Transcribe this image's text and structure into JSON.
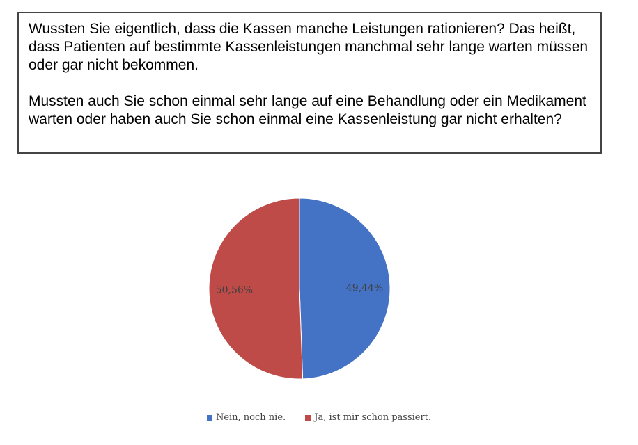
{
  "question": {
    "paragraph1": "Wussten Sie eigentlich, dass die Kassen manche Leistungen rationieren? Das heißt, dass Patienten auf bestimmte Kassenleistungen manchmal sehr lange warten müssen oder gar nicht bekommen.",
    "paragraph2": "Mussten auch Sie schon einmal sehr lange auf eine Behandlung oder ein Medikament warten oder haben auch Sie schon einmal eine Kassenleistung gar nicht erhalten?"
  },
  "chart_data": {
    "type": "pie",
    "title": "",
    "categories": [
      "Nein, noch nie.",
      "Ja, ist mir schon passiert."
    ],
    "values": [
      49.44,
      50.56
    ],
    "data_labels": [
      "49,44%",
      "50,56%"
    ],
    "colors": [
      "#4472C4",
      "#BE4B48"
    ],
    "start_angle": "12 o'clock, clockwise",
    "legend": "bottom"
  }
}
